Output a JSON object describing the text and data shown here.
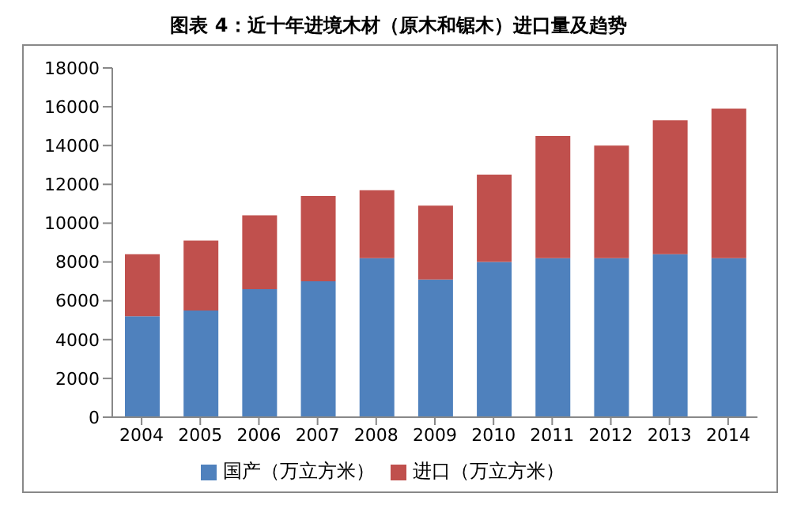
{
  "chart_data": {
    "type": "bar",
    "title": "图表 4：近十年进境木材（原木和锯木）进口量及趋势",
    "categories": [
      "2004",
      "2005",
      "2006",
      "2007",
      "2008",
      "2009",
      "2010",
      "2011",
      "2012",
      "2013",
      "2014"
    ],
    "stacked": true,
    "series": [
      {
        "name": "国产（万立方米）",
        "color": "#4f81bd",
        "values": [
          5200,
          5500,
          6600,
          7000,
          8200,
          7100,
          8000,
          8200,
          8200,
          8400,
          8200
        ]
      },
      {
        "name": "进口（万立方米）",
        "color": "#c0504d",
        "values": [
          3200,
          3600,
          3800,
          4400,
          3500,
          3800,
          4500,
          6300,
          5800,
          6900,
          7700
        ]
      }
    ],
    "ylim": [
      0,
      18000
    ],
    "yticks": [
      0,
      2000,
      4000,
      6000,
      8000,
      10000,
      12000,
      14000,
      16000,
      18000
    ],
    "grid": false,
    "legend": "bottom"
  }
}
